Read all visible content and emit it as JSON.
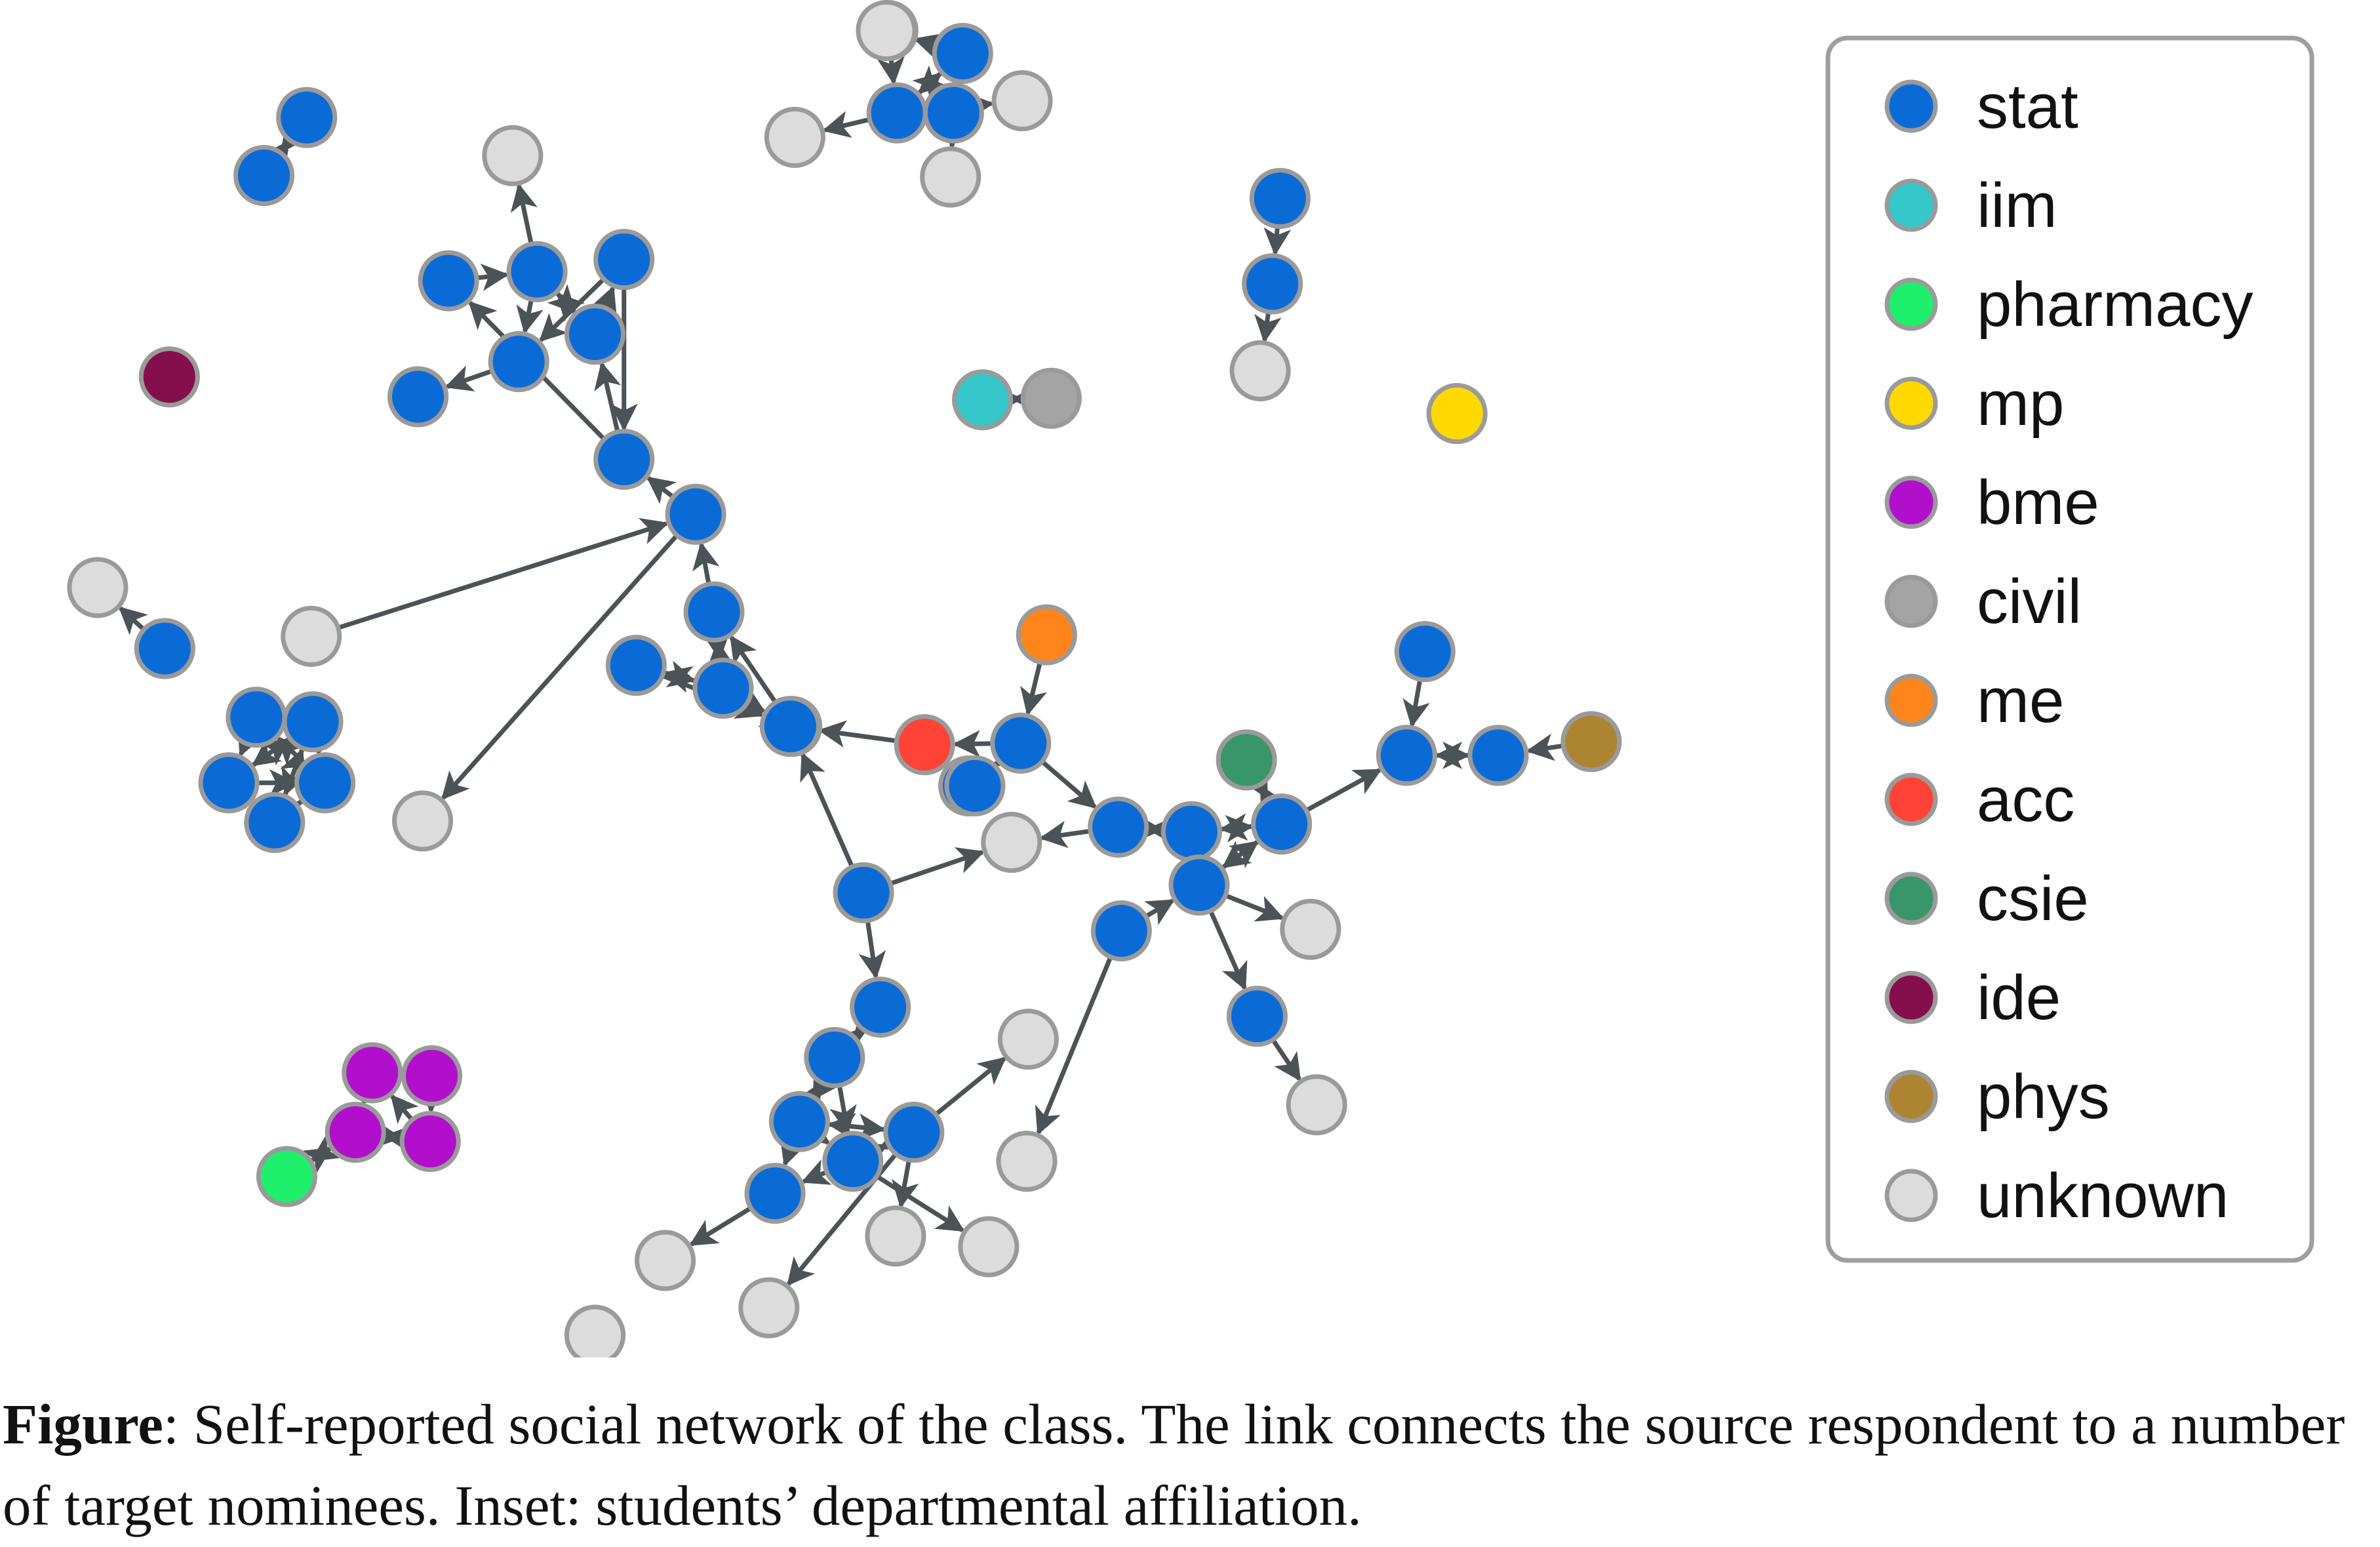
{
  "colors": {
    "stat": "#0b6bd6",
    "iim": "#35c7c9",
    "pharmacy": "#1ef06b",
    "mp": "#ffd900",
    "bme": "#b10fcc",
    "civil": "#a4a4a4",
    "me": "#ff851a",
    "acc": "#ff4337",
    "csie": "#39956a",
    "ide": "#850f4c",
    "phys": "#ad8432",
    "unknown": "#dcdcdc",
    "node_stroke": "#9a9a9a",
    "edge": "#4c5357",
    "legend_border": "#9e9e9e"
  },
  "legend": {
    "items": [
      {
        "key": "stat",
        "label": "stat"
      },
      {
        "key": "iim",
        "label": "iim"
      },
      {
        "key": "pharmacy",
        "label": "pharmacy"
      },
      {
        "key": "mp",
        "label": "mp"
      },
      {
        "key": "bme",
        "label": "bme"
      },
      {
        "key": "civil",
        "label": "civil"
      },
      {
        "key": "me",
        "label": "me"
      },
      {
        "key": "acc",
        "label": "acc"
      },
      {
        "key": "csie",
        "label": "csie"
      },
      {
        "key": "ide",
        "label": "ide"
      },
      {
        "key": "phys",
        "label": "phys"
      },
      {
        "key": "unknown",
        "label": "unknown"
      }
    ]
  },
  "caption": {
    "lead": "Figure",
    "text": ": Self-reported social network of the class. The link connects the source respondent to a number of target nominees. Inset: students’ departmental affiliation."
  },
  "network": {
    "nodes": [
      [
        "a1",
        "stat"
      ],
      [
        "a2",
        "stat"
      ],
      [
        "b1",
        "unknown"
      ],
      [
        "b2",
        "stat"
      ],
      [
        "b3",
        "unknown"
      ],
      [
        "b4",
        "stat"
      ],
      [
        "b5",
        "stat"
      ],
      [
        "b6",
        "unknown"
      ],
      [
        "b7",
        "unknown"
      ],
      [
        "b8",
        "unknown"
      ],
      [
        "c1",
        "stat"
      ],
      [
        "c2",
        "stat"
      ],
      [
        "c3",
        "unknown"
      ],
      [
        "d1",
        "iim"
      ],
      [
        "d2",
        "civil"
      ],
      [
        "e1",
        "ide"
      ],
      [
        "f1",
        "mp"
      ],
      [
        "g1",
        "unknown"
      ],
      [
        "g2",
        "stat"
      ],
      [
        "g3",
        "stat"
      ],
      [
        "g4",
        "stat"
      ],
      [
        "g5",
        "stat"
      ],
      [
        "g6",
        "stat"
      ],
      [
        "g7",
        "stat"
      ],
      [
        "g8",
        "stat"
      ],
      [
        "h1",
        "unknown"
      ],
      [
        "h2",
        "stat"
      ],
      [
        "h3",
        "stat"
      ],
      [
        "h4",
        "stat"
      ],
      [
        "h5",
        "stat"
      ],
      [
        "h6",
        "stat"
      ],
      [
        "h7",
        "stat"
      ],
      [
        "i1",
        "stat"
      ],
      [
        "i2",
        "unknown"
      ],
      [
        "i3",
        "unknown"
      ],
      [
        "i4",
        "stat"
      ],
      [
        "i5",
        "stat"
      ],
      [
        "i6",
        "stat"
      ],
      [
        "i7",
        "stat"
      ],
      [
        "i8",
        "stat"
      ],
      [
        "i9",
        "unknown"
      ],
      [
        "j1",
        "me"
      ],
      [
        "j2",
        "acc"
      ],
      [
        "j3",
        "stat"
      ],
      [
        "j4",
        "stat"
      ],
      [
        "j5",
        "unknown"
      ],
      [
        "j6",
        "stat"
      ],
      [
        "k1",
        "csie"
      ],
      [
        "k2",
        "stat"
      ],
      [
        "k3",
        "stat"
      ],
      [
        "k4",
        "stat"
      ],
      [
        "k5",
        "stat"
      ],
      [
        "k6",
        "stat"
      ],
      [
        "k7",
        "unknown"
      ],
      [
        "k8",
        "stat"
      ],
      [
        "k9",
        "unknown"
      ],
      [
        "l1",
        "stat"
      ],
      [
        "l2",
        "stat"
      ],
      [
        "l3",
        "stat"
      ],
      [
        "l4",
        "phys"
      ],
      [
        "m1",
        "stat"
      ],
      [
        "m2",
        "unknown"
      ],
      [
        "m3",
        "stat"
      ],
      [
        "m4",
        "stat"
      ],
      [
        "m5",
        "stat"
      ],
      [
        "m6",
        "stat"
      ],
      [
        "m7",
        "unknown"
      ],
      [
        "m8",
        "stat"
      ],
      [
        "m9",
        "unknown"
      ],
      [
        "m10",
        "stat"
      ],
      [
        "m11",
        "unknown"
      ],
      [
        "m12",
        "unknown"
      ],
      [
        "m13",
        "unknown"
      ],
      [
        "m14",
        "unknown"
      ],
      [
        "n1",
        "bme"
      ],
      [
        "n2",
        "bme"
      ],
      [
        "n3",
        "bme"
      ],
      [
        "n4",
        "bme"
      ],
      [
        "n5",
        "pharmacy"
      ]
    ],
    "edges": [
      [
        "a1",
        "a2"
      ],
      [
        "a2",
        "a1"
      ],
      [
        "b2",
        "b5"
      ],
      [
        "b4",
        "b2"
      ],
      [
        "b5",
        "b4"
      ],
      [
        "b4",
        "b3"
      ],
      [
        "b4",
        "b6"
      ],
      [
        "b5",
        "b7"
      ],
      [
        "b2",
        "b8"
      ],
      [
        "b1",
        "b4"
      ],
      [
        "b2",
        "b4"
      ],
      [
        "c1",
        "c2"
      ],
      [
        "c2",
        "c3"
      ],
      [
        "d1",
        "d2"
      ],
      [
        "d2",
        "d1"
      ],
      [
        "g3",
        "g1"
      ],
      [
        "g2",
        "g3"
      ],
      [
        "g3",
        "g6"
      ],
      [
        "g4",
        "g6"
      ],
      [
        "g5",
        "g3"
      ],
      [
        "g6",
        "g7"
      ],
      [
        "g5",
        "g4"
      ],
      [
        "g8",
        "g5"
      ],
      [
        "g4",
        "g8"
      ],
      [
        "g8",
        "g2"
      ],
      [
        "g3",
        "g5"
      ],
      [
        "h2",
        "h1"
      ],
      [
        "h4",
        "h3"
      ],
      [
        "h3",
        "h4"
      ],
      [
        "h3",
        "h5"
      ],
      [
        "h5",
        "h6"
      ],
      [
        "h6",
        "h7"
      ],
      [
        "h4",
        "h5"
      ],
      [
        "h7",
        "h4"
      ],
      [
        "h6",
        "h3"
      ],
      [
        "h4",
        "h7"
      ],
      [
        "h5",
        "h4"
      ],
      [
        "h7",
        "h6"
      ],
      [
        "h4",
        "h6"
      ],
      [
        "i1",
        "i3"
      ],
      [
        "i2",
        "i1"
      ],
      [
        "i1",
        "g8"
      ],
      [
        "i4",
        "i1"
      ],
      [
        "i6",
        "i4"
      ],
      [
        "i5",
        "i6"
      ],
      [
        "i6",
        "i5"
      ],
      [
        "i7",
        "i4"
      ],
      [
        "i6",
        "i8"
      ],
      [
        "i8",
        "i7"
      ],
      [
        "i5",
        "i8"
      ],
      [
        "i4",
        "i6"
      ],
      [
        "j1",
        "j3"
      ],
      [
        "j2",
        "i8"
      ],
      [
        "j3",
        "j2"
      ],
      [
        "j4",
        "j2"
      ],
      [
        "j2",
        "j4"
      ],
      [
        "j3",
        "j6"
      ],
      [
        "j4",
        "j3"
      ],
      [
        "j3",
        "k2"
      ],
      [
        "k2",
        "k3"
      ],
      [
        "k3",
        "k2"
      ],
      [
        "k3",
        "k4"
      ],
      [
        "k4",
        "k3"
      ],
      [
        "k1",
        "k4"
      ],
      [
        "k4",
        "k5"
      ],
      [
        "k5",
        "k4"
      ],
      [
        "k3",
        "k5"
      ],
      [
        "k2",
        "j5"
      ],
      [
        "k5",
        "k7"
      ],
      [
        "k5",
        "k8"
      ],
      [
        "k8",
        "k9"
      ],
      [
        "k6",
        "k5"
      ],
      [
        "k4",
        "k1"
      ],
      [
        "k4",
        "l2"
      ],
      [
        "k6",
        "m9"
      ],
      [
        "l1",
        "l2"
      ],
      [
        "l2",
        "l3"
      ],
      [
        "l3",
        "l2"
      ],
      [
        "l4",
        "l3"
      ],
      [
        "m1",
        "j5"
      ],
      [
        "m1",
        "i8"
      ],
      [
        "m1",
        "m3"
      ],
      [
        "m3",
        "m4"
      ],
      [
        "m4",
        "m3"
      ],
      [
        "m4",
        "m5"
      ],
      [
        "m5",
        "m4"
      ],
      [
        "m3",
        "m5"
      ],
      [
        "m5",
        "m6"
      ],
      [
        "m6",
        "m5"
      ],
      [
        "m6",
        "m8"
      ],
      [
        "m8",
        "m6"
      ],
      [
        "m5",
        "m8"
      ],
      [
        "m8",
        "m10"
      ],
      [
        "m10",
        "m12"
      ],
      [
        "m6",
        "m11"
      ],
      [
        "m8",
        "m13"
      ],
      [
        "m6",
        "m14"
      ],
      [
        "m6",
        "m7"
      ],
      [
        "m8",
        "m6"
      ],
      [
        "m5",
        "m10"
      ],
      [
        "m4",
        "m8"
      ],
      [
        "n1",
        "n2"
      ],
      [
        "n2",
        "n1"
      ],
      [
        "n3",
        "n4"
      ],
      [
        "n4",
        "n3"
      ],
      [
        "n1",
        "n3"
      ],
      [
        "n2",
        "n4"
      ],
      [
        "n3",
        "n5"
      ],
      [
        "n5",
        "n3"
      ],
      [
        "n4",
        "n1"
      ]
    ]
  }
}
